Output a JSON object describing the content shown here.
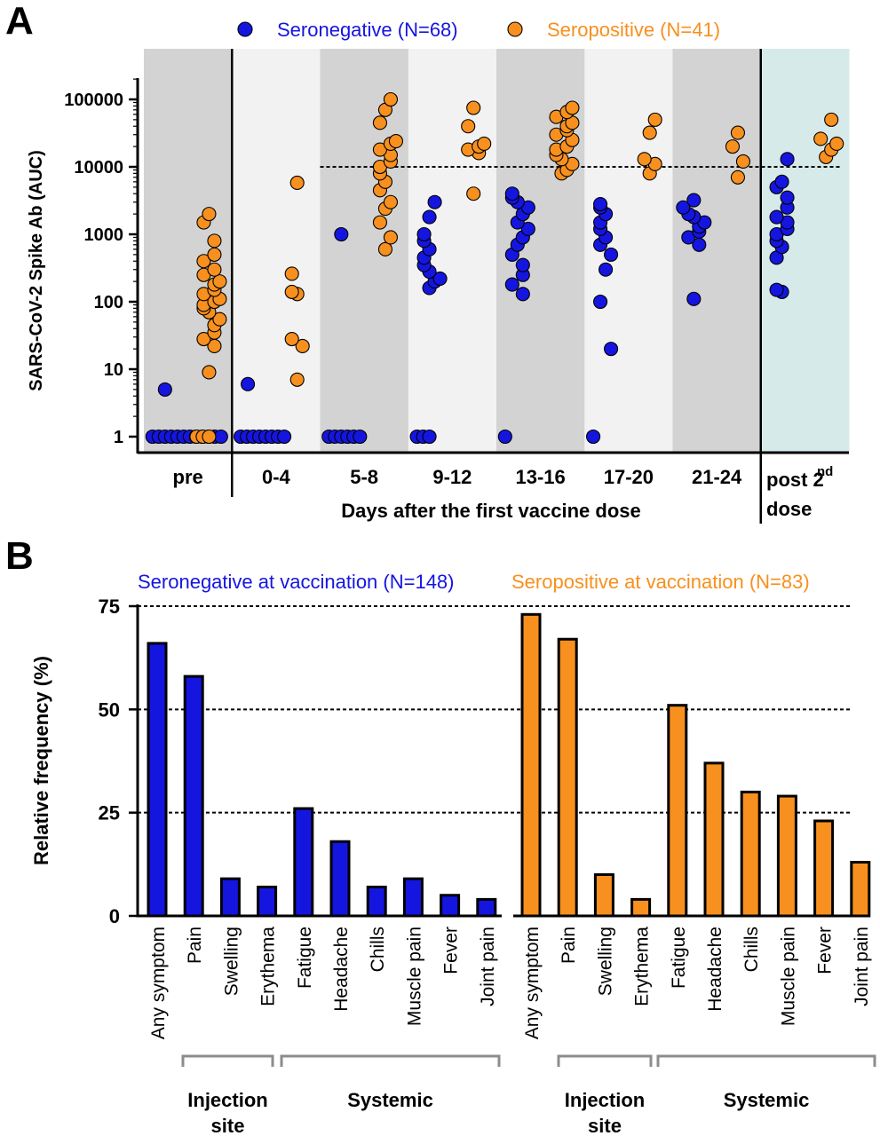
{
  "colors": {
    "seronegative": "#1515e0",
    "seropositive": "#f7901e",
    "stroke": "#000000",
    "band_dark": "#d3d3d3",
    "band_light": "#f2f2f2",
    "band_teal": "#d7eaea",
    "bracket": "#8c8c8c"
  },
  "chart_data": [
    {
      "panel": "A",
      "type": "scatter",
      "ylabel": "SARS-CoV-2 Spike Ab (AUC)",
      "xlabel": "Days after the first vaccine dose",
      "yscale": "log",
      "ylim": [
        1,
        200000
      ],
      "yticks": [
        {
          "value": 1,
          "label": "1"
        },
        {
          "value": 10,
          "label": "10"
        },
        {
          "value": 100,
          "label": "100"
        },
        {
          "value": 1000,
          "label": "1000"
        },
        {
          "value": 10000,
          "label": "10000"
        },
        {
          "value": 100000,
          "label": "100000"
        }
      ],
      "threshold": 10000,
      "categories": [
        "pre",
        "0-4",
        "5-8",
        "9-12",
        "13-16",
        "17-20",
        "21-24",
        "post 2nd dose"
      ],
      "post_label": {
        "main": "post 2",
        "sup": "nd",
        "line2": "dose"
      },
      "legend": {
        "placement": "top",
        "items": [
          {
            "label": "Seronegative (N=68)",
            "series": "seronegative"
          },
          {
            "label": "Seropositive (N=41)",
            "series": "seropositive"
          }
        ]
      },
      "series": [
        {
          "key": "seronegative",
          "groups": [
            [
              1,
              1,
              1,
              1,
              1,
              1,
              1,
              1,
              1,
              1,
              1,
              1,
              5
            ],
            [
              1,
              1,
              1,
              1,
              1,
              1,
              1,
              1,
              6
            ],
            [
              1,
              1,
              1,
              1,
              1,
              1,
              1000
            ],
            [
              1,
              1,
              1,
              160,
              200,
              220,
              280,
              350,
              450,
              600,
              800,
              1000,
              1800,
              3000
            ],
            [
              1,
              130,
              180,
              250,
              350,
              500,
              700,
              900,
              1200,
              1500,
              2000,
              2500,
              3000,
              3500,
              4000
            ],
            [
              1,
              20,
              100,
              300,
              500,
              700,
              900,
              1200,
              1500,
              2000,
              2500,
              2800
            ],
            [
              110,
              700,
              900,
              1100,
              1300,
              1500,
              1800,
              2000,
              2500,
              3200
            ],
            [
              140,
              150,
              450,
              650,
              800,
              1000,
              1200,
              1500,
              1800,
              2500,
              3500,
              5000,
              6000,
              13000
            ]
          ]
        },
        {
          "key": "seropositive",
          "groups": [
            [
              1,
              1,
              1,
              9,
              22,
              28,
              35,
              45,
              55,
              70,
              80,
              90,
              100,
              110,
              130,
              150,
              180,
              200,
              250,
              300,
              400,
              500,
              800,
              1500,
              2000
            ],
            [
              7,
              22,
              28,
              130,
              140,
              260,
              5800
            ],
            [
              600,
              900,
              1500,
              2400,
              3000,
              4500,
              6000,
              8000,
              10000,
              12000,
              15000,
              18000,
              22000,
              24000,
              45000,
              70000,
              100000
            ],
            [
              4000,
              16000,
              18000,
              20000,
              22000,
              40000,
              75000
            ],
            [
              8000,
              9000,
              11000,
              13000,
              15000,
              18000,
              20000,
              25000,
              30000,
              35000,
              40000,
              45000,
              55000,
              65000,
              75000
            ],
            [
              8000,
              11000,
              13000,
              32000,
              50000
            ],
            [
              7000,
              12000,
              20000,
              32000
            ],
            [
              14000,
              18000,
              22000,
              26000,
              50000
            ]
          ]
        }
      ]
    },
    {
      "panel": "B",
      "type": "bar",
      "ylabel": "Relative frequency (%)",
      "ylim": [
        0,
        75
      ],
      "yticks": [
        0,
        25,
        50,
        75
      ],
      "groups": [
        {
          "title": "Seronegative at vaccination (N=148)",
          "series": "seronegative",
          "categories": [
            "Any symptom",
            "Pain",
            "Swelling",
            "Erythema",
            "Fatigue",
            "Headache",
            "Chills",
            "Muscle pain",
            "Fever",
            "Joint pain"
          ],
          "values": [
            66,
            58,
            9,
            7,
            26,
            18,
            7,
            9,
            5,
            4
          ]
        },
        {
          "title": "Seropositive at vaccination (N=83)",
          "series": "seropositive",
          "categories": [
            "Any symptom",
            "Pain",
            "Swelling",
            "Erythema",
            "Fatigue",
            "Headache",
            "Chills",
            "Muscle pain",
            "Fever",
            "Joint pain"
          ],
          "values": [
            73,
            67,
            10,
            4,
            51,
            37,
            30,
            29,
            23,
            13
          ]
        }
      ],
      "brackets": {
        "injection": [
          "Injection",
          "site"
        ],
        "systemic": "Systemic"
      }
    }
  ],
  "panel_labels": [
    "A",
    "B"
  ]
}
